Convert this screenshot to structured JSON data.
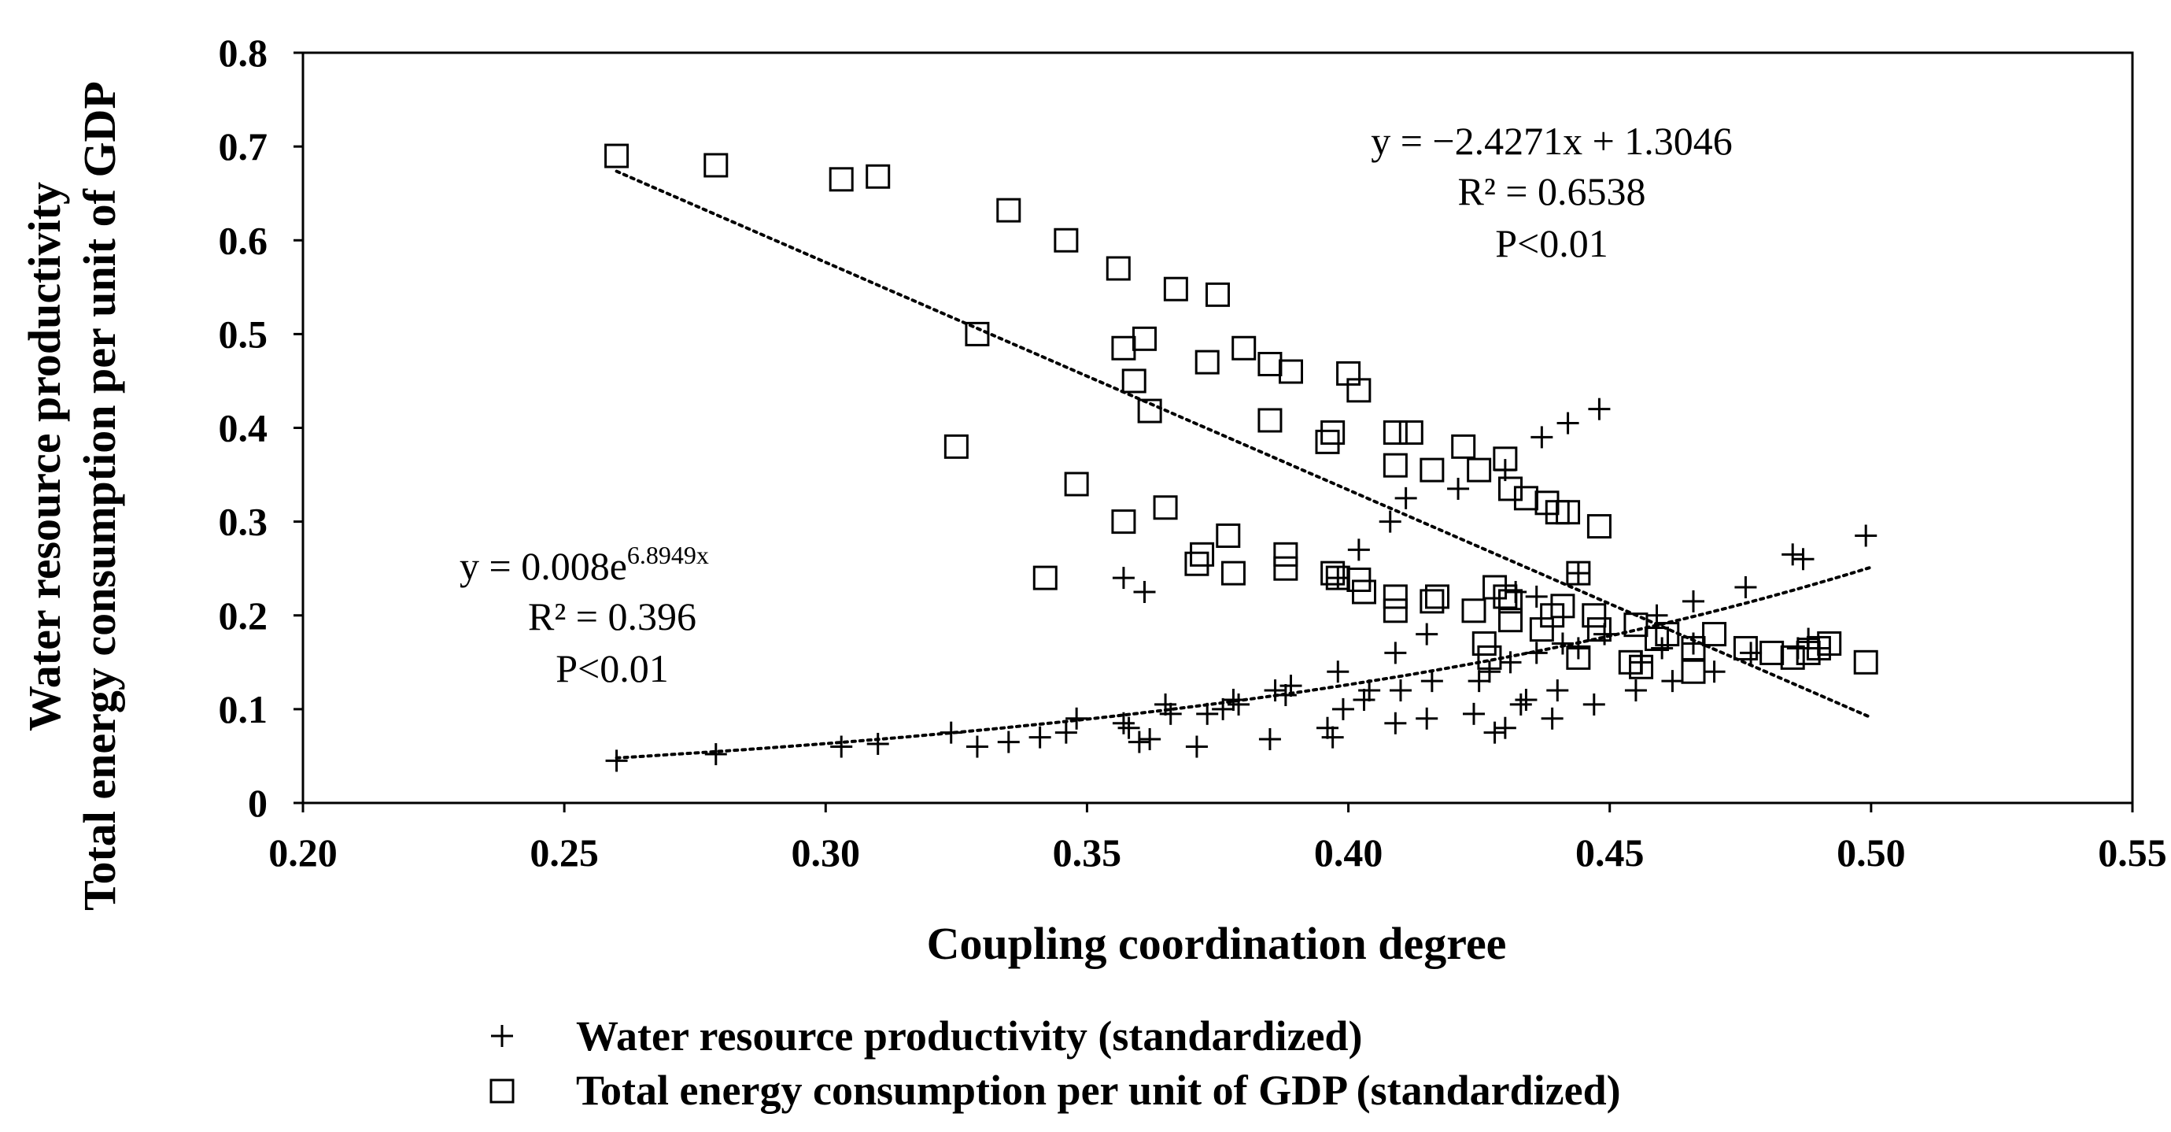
{
  "chart_data": {
    "type": "scatter",
    "title": "",
    "xlabel": "Coupling coordination degree",
    "ylabel_lines": [
      "Water resource productivity",
      "Total energy consumption per unit of GDP"
    ],
    "xlim": [
      0.2,
      0.55
    ],
    "ylim": [
      0,
      0.8
    ],
    "x_ticks": [
      0.2,
      0.25,
      0.3,
      0.35,
      0.4,
      0.45,
      0.5,
      0.55
    ],
    "x_tick_labels": [
      "0.20",
      "0.25",
      "0.30",
      "0.35",
      "0.40",
      "0.45",
      "0.50",
      "0.55"
    ],
    "y_ticks": [
      0,
      0.1,
      0.2,
      0.3,
      0.4,
      0.5,
      0.6,
      0.7,
      0.8
    ],
    "y_tick_labels": [
      "0",
      "0.1",
      "0.2",
      "0.3",
      "0.4",
      "0.5",
      "0.6",
      "0.7",
      "0.8"
    ],
    "grid": false,
    "legend_position": "bottom",
    "series": [
      {
        "name": "Water resource productivity (standardized)",
        "marker": "plus",
        "points": [
          [
            0.26,
            0.045
          ],
          [
            0.279,
            0.052
          ],
          [
            0.303,
            0.06
          ],
          [
            0.31,
            0.063
          ],
          [
            0.324,
            0.075
          ],
          [
            0.329,
            0.06
          ],
          [
            0.335,
            0.065
          ],
          [
            0.341,
            0.07
          ],
          [
            0.346,
            0.075
          ],
          [
            0.348,
            0.09
          ],
          [
            0.357,
            0.085
          ],
          [
            0.358,
            0.08
          ],
          [
            0.36,
            0.065
          ],
          [
            0.362,
            0.068
          ],
          [
            0.365,
            0.105
          ],
          [
            0.366,
            0.095
          ],
          [
            0.371,
            0.06
          ],
          [
            0.373,
            0.095
          ],
          [
            0.376,
            0.1
          ],
          [
            0.378,
            0.11
          ],
          [
            0.379,
            0.105
          ],
          [
            0.385,
            0.068
          ],
          [
            0.386,
            0.12
          ],
          [
            0.388,
            0.115
          ],
          [
            0.389,
            0.125
          ],
          [
            0.396,
            0.08
          ],
          [
            0.397,
            0.07
          ],
          [
            0.398,
            0.14
          ],
          [
            0.399,
            0.1
          ],
          [
            0.403,
            0.11
          ],
          [
            0.404,
            0.12
          ],
          [
            0.409,
            0.085
          ],
          [
            0.409,
            0.16
          ],
          [
            0.41,
            0.12
          ],
          [
            0.415,
            0.09
          ],
          [
            0.416,
            0.13
          ],
          [
            0.424,
            0.095
          ],
          [
            0.425,
            0.13
          ],
          [
            0.427,
            0.14
          ],
          [
            0.428,
            0.075
          ],
          [
            0.43,
            0.08
          ],
          [
            0.431,
            0.15
          ],
          [
            0.433,
            0.105
          ],
          [
            0.434,
            0.11
          ],
          [
            0.436,
            0.16
          ],
          [
            0.439,
            0.09
          ],
          [
            0.44,
            0.12
          ],
          [
            0.441,
            0.17
          ],
          [
            0.444,
            0.165
          ],
          [
            0.447,
            0.105
          ],
          [
            0.449,
            0.18
          ],
          [
            0.455,
            0.12
          ],
          [
            0.456,
            0.15
          ],
          [
            0.46,
            0.165
          ],
          [
            0.462,
            0.13
          ],
          [
            0.466,
            0.17
          ],
          [
            0.47,
            0.14
          ],
          [
            0.477,
            0.16
          ],
          [
            0.486,
            0.165
          ],
          [
            0.488,
            0.175
          ],
          [
            0.49,
            0.165
          ],
          [
            0.357,
            0.24
          ],
          [
            0.361,
            0.225
          ],
          [
            0.398,
            0.24
          ],
          [
            0.402,
            0.27
          ],
          [
            0.408,
            0.3
          ],
          [
            0.411,
            0.325
          ],
          [
            0.415,
            0.18
          ],
          [
            0.421,
            0.335
          ],
          [
            0.43,
            0.355
          ],
          [
            0.432,
            0.225
          ],
          [
            0.436,
            0.22
          ],
          [
            0.437,
            0.39
          ],
          [
            0.442,
            0.405
          ],
          [
            0.448,
            0.42
          ],
          [
            0.444,
            0.245
          ],
          [
            0.459,
            0.2
          ],
          [
            0.466,
            0.215
          ],
          [
            0.476,
            0.23
          ],
          [
            0.485,
            0.265
          ],
          [
            0.487,
            0.26
          ],
          [
            0.499,
            0.285
          ]
        ]
      },
      {
        "name": "Total energy consumption per unit of GDP (standardized)",
        "marker": "square",
        "points": [
          [
            0.26,
            0.69
          ],
          [
            0.279,
            0.68
          ],
          [
            0.303,
            0.665
          ],
          [
            0.31,
            0.668
          ],
          [
            0.335,
            0.632
          ],
          [
            0.346,
            0.6
          ],
          [
            0.356,
            0.57
          ],
          [
            0.367,
            0.548
          ],
          [
            0.375,
            0.542
          ],
          [
            0.329,
            0.5
          ],
          [
            0.357,
            0.485
          ],
          [
            0.361,
            0.495
          ],
          [
            0.359,
            0.45
          ],
          [
            0.362,
            0.418
          ],
          [
            0.373,
            0.47
          ],
          [
            0.38,
            0.485
          ],
          [
            0.385,
            0.468
          ],
          [
            0.389,
            0.46
          ],
          [
            0.4,
            0.458
          ],
          [
            0.402,
            0.44
          ],
          [
            0.385,
            0.408
          ],
          [
            0.396,
            0.385
          ],
          [
            0.397,
            0.395
          ],
          [
            0.409,
            0.395
          ],
          [
            0.412,
            0.395
          ],
          [
            0.422,
            0.38
          ],
          [
            0.43,
            0.367
          ],
          [
            0.409,
            0.36
          ],
          [
            0.416,
            0.355
          ],
          [
            0.425,
            0.355
          ],
          [
            0.431,
            0.335
          ],
          [
            0.434,
            0.325
          ],
          [
            0.438,
            0.32
          ],
          [
            0.44,
            0.31
          ],
          [
            0.442,
            0.31
          ],
          [
            0.448,
            0.295
          ],
          [
            0.325,
            0.38
          ],
          [
            0.348,
            0.34
          ],
          [
            0.357,
            0.3
          ],
          [
            0.365,
            0.315
          ],
          [
            0.342,
            0.24
          ],
          [
            0.372,
            0.265
          ],
          [
            0.371,
            0.255
          ],
          [
            0.377,
            0.285
          ],
          [
            0.378,
            0.245
          ],
          [
            0.388,
            0.265
          ],
          [
            0.388,
            0.25
          ],
          [
            0.397,
            0.245
          ],
          [
            0.398,
            0.24
          ],
          [
            0.402,
            0.238
          ],
          [
            0.403,
            0.225
          ],
          [
            0.409,
            0.22
          ],
          [
            0.409,
            0.205
          ],
          [
            0.416,
            0.215
          ],
          [
            0.417,
            0.22
          ],
          [
            0.424,
            0.205
          ],
          [
            0.428,
            0.23
          ],
          [
            0.43,
            0.22
          ],
          [
            0.431,
            0.215
          ],
          [
            0.431,
            0.195
          ],
          [
            0.426,
            0.17
          ],
          [
            0.427,
            0.155
          ],
          [
            0.437,
            0.185
          ],
          [
            0.439,
            0.2
          ],
          [
            0.441,
            0.21
          ],
          [
            0.444,
            0.245
          ],
          [
            0.444,
            0.155
          ],
          [
            0.447,
            0.2
          ],
          [
            0.448,
            0.185
          ],
          [
            0.454,
            0.15
          ],
          [
            0.455,
            0.19
          ],
          [
            0.456,
            0.145
          ],
          [
            0.459,
            0.175
          ],
          [
            0.461,
            0.18
          ],
          [
            0.466,
            0.14
          ],
          [
            0.466,
            0.165
          ],
          [
            0.47,
            0.18
          ],
          [
            0.476,
            0.165
          ],
          [
            0.481,
            0.16
          ],
          [
            0.485,
            0.155
          ],
          [
            0.488,
            0.16
          ],
          [
            0.49,
            0.165
          ],
          [
            0.492,
            0.17
          ],
          [
            0.499,
            0.15
          ]
        ]
      }
    ],
    "trendlines": [
      {
        "series": "Water resource productivity (standardized)",
        "type": "exponential",
        "a": 0.008,
        "b": 6.8949,
        "x_range": [
          0.26,
          0.5
        ]
      },
      {
        "series": "Total energy consumption per unit of GDP (standardized)",
        "type": "linear",
        "slope": -2.4271,
        "intercept": 1.3046,
        "x_range": [
          0.26,
          0.5
        ]
      }
    ],
    "annotations": {
      "exp_eq_prefix": "y = 0.008e",
      "exp_eq_exponent": "6.8949x",
      "exp_r2": "R² = 0.396",
      "exp_p": "P<0.01",
      "lin_eq": "y = −2.4271x + 1.3046",
      "lin_r2": "R² = 0.6538",
      "lin_p": "P<0.01"
    },
    "legend": [
      {
        "symbol": "+",
        "label": "Water resource productivity (standardized)"
      },
      {
        "symbol": "□",
        "label": "Total energy consumption per unit of GDP (standardized)"
      }
    ]
  }
}
